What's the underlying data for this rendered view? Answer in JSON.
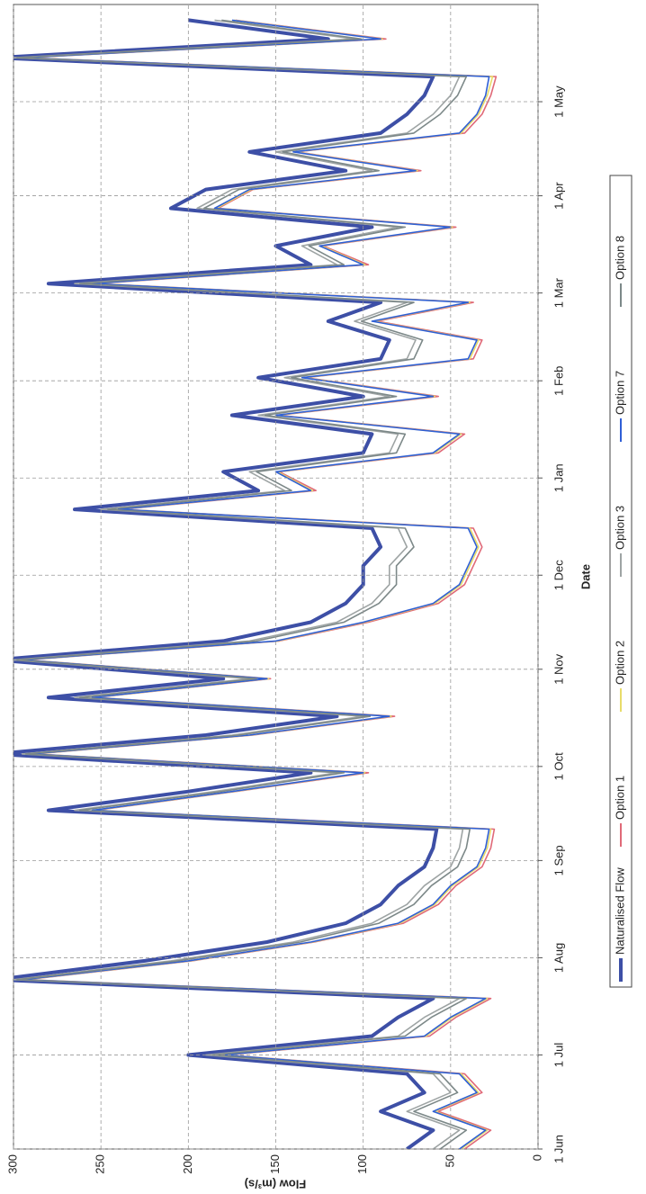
{
  "chart_data": {
    "type": "line",
    "x_label": "Date",
    "y_label": "Flow (m³/s)",
    "x": [
      0,
      6,
      12,
      18,
      24,
      30,
      36,
      42,
      48,
      54,
      60,
      66,
      72,
      78,
      84,
      90,
      96,
      102,
      108,
      114,
      120,
      126,
      132,
      138,
      144,
      150,
      156,
      162,
      168,
      174,
      180,
      186,
      192,
      198,
      204,
      210,
      216,
      222,
      228,
      234,
      240,
      246,
      252,
      258,
      264,
      270,
      276,
      282,
      288,
      294,
      300,
      306,
      312,
      318,
      324,
      330,
      336,
      342,
      348,
      354,
      360
    ],
    "xlim": [
      0,
      365
    ],
    "xticks": [
      {
        "value": 0,
        "label": "1 Jun"
      },
      {
        "value": 30,
        "label": "1 Jul"
      },
      {
        "value": 61,
        "label": "1 Aug"
      },
      {
        "value": 92,
        "label": "1 Sep"
      },
      {
        "value": 122,
        "label": "1 Oct"
      },
      {
        "value": 153,
        "label": "1 Nov"
      },
      {
        "value": 183,
        "label": "1 Dec"
      },
      {
        "value": 214,
        "label": "1 Jan"
      },
      {
        "value": 245,
        "label": "1 Feb"
      },
      {
        "value": 273,
        "label": "1 Mar"
      },
      {
        "value": 304,
        "label": "1 Apr"
      },
      {
        "value": 334,
        "label": "1 May"
      }
    ],
    "ylim": [
      0,
      300
    ],
    "yticks": [
      0,
      50,
      100,
      150,
      200,
      250,
      300
    ],
    "grid": true,
    "series": [
      {
        "name": "Naturalised Flow",
        "color": "#3d4fa6",
        "values": [
          75,
          60,
          90,
          65,
          75,
          200,
          95,
          80,
          60,
          310,
          225,
          155,
          110,
          90,
          80,
          65,
          60,
          58,
          280,
          200,
          130,
          310,
          190,
          115,
          280,
          180,
          310,
          180,
          130,
          110,
          100,
          100,
          90,
          95,
          265,
          160,
          180,
          100,
          95,
          175,
          100,
          160,
          90,
          85,
          120,
          90,
          280,
          130,
          150,
          95,
          210,
          190,
          110,
          165,
          90,
          75,
          65,
          60,
          310,
          120,
          200
        ]
      },
      {
        "name": "Option 1",
        "color": "#e06a78",
        "values": [
          42,
          27,
          57,
          32,
          42,
          178,
          62,
          47,
          27,
          293,
          198,
          128,
          77,
          57,
          47,
          32,
          27,
          25,
          253,
          173,
          97,
          288,
          163,
          82,
          253,
          153,
          293,
          148,
          97,
          57,
          42,
          37,
          32,
          37,
          238,
          127,
          148,
          57,
          42,
          148,
          57,
          133,
          37,
          32,
          92,
          37,
          253,
          97,
          123,
          47,
          183,
          163,
          67,
          138,
          42,
          32,
          27,
          24,
          293,
          87,
          173
        ]
      },
      {
        "name": "Option 2",
        "color": "#e8dc6a",
        "values": [
          44,
          29,
          59,
          34,
          44,
          179,
          64,
          49,
          29,
          294,
          199,
          129,
          79,
          59,
          49,
          34,
          29,
          27,
          254,
          174,
          99,
          289,
          164,
          84,
          254,
          154,
          294,
          149,
          99,
          59,
          44,
          39,
          34,
          39,
          239,
          129,
          149,
          59,
          44,
          149,
          59,
          134,
          39,
          34,
          94,
          39,
          254,
          99,
          124,
          49,
          184,
          164,
          69,
          139,
          44,
          34,
          29,
          26,
          294,
          89,
          174
        ]
      },
      {
        "name": "Option 3",
        "color": "#9ea4a4",
        "values": [
          60,
          45,
          75,
          50,
          60,
          190,
          80,
          65,
          45,
          300,
          210,
          140,
          95,
          75,
          65,
          50,
          45,
          43,
          265,
          185,
          115,
          295,
          175,
          100,
          265,
          165,
          300,
          165,
          115,
          95,
          85,
          85,
          75,
          80,
          250,
          145,
          165,
          85,
          80,
          160,
          85,
          145,
          75,
          70,
          105,
          75,
          265,
          115,
          135,
          80,
          195,
          175,
          95,
          150,
          75,
          60,
          50,
          45,
          300,
          105,
          185
        ]
      },
      {
        "name": "Option 7",
        "color": "#2f5fd6",
        "values": [
          45,
          30,
          60,
          35,
          45,
          180,
          65,
          50,
          30,
          295,
          200,
          130,
          80,
          60,
          50,
          35,
          30,
          28,
          255,
          175,
          100,
          290,
          165,
          85,
          255,
          155,
          295,
          150,
          100,
          60,
          45,
          40,
          35,
          40,
          240,
          130,
          150,
          60,
          45,
          150,
          60,
          135,
          40,
          35,
          95,
          40,
          255,
          100,
          125,
          50,
          185,
          165,
          70,
          140,
          45,
          35,
          30,
          28,
          295,
          90,
          175
        ]
      },
      {
        "name": "Option 8",
        "color": "#7c8888",
        "values": [
          56,
          41,
          71,
          46,
          56,
          186,
          76,
          61,
          41,
          298,
          206,
          136,
          91,
          71,
          61,
          46,
          41,
          39,
          262,
          181,
          111,
          293,
          171,
          96,
          262,
          161,
          298,
          161,
          111,
          91,
          81,
          81,
          71,
          76,
          246,
          141,
          161,
          81,
          76,
          156,
          81,
          141,
          71,
          66,
          101,
          71,
          262,
          111,
          131,
          76,
          191,
          171,
          91,
          146,
          71,
          56,
          46,
          41,
          298,
          101,
          181
        ]
      }
    ]
  }
}
